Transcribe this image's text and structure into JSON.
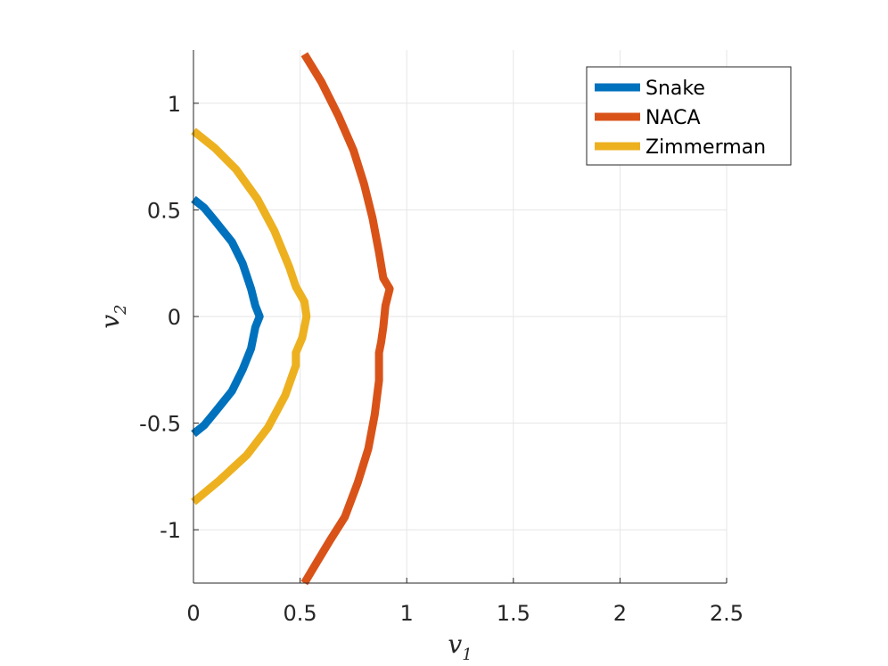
{
  "chart_data": {
    "type": "line",
    "title": "",
    "xlabel": {
      "base": "v",
      "sub": "1"
    },
    "ylabel": {
      "base": "v",
      "sub": "2"
    },
    "xlim": [
      0,
      2.5
    ],
    "ylim": [
      -1.25,
      1.25
    ],
    "xticks": [
      0,
      0.5,
      1,
      1.5,
      2,
      2.5
    ],
    "xtick_labels": [
      "0",
      "0.5",
      "1",
      "1.5",
      "2",
      "2.5"
    ],
    "yticks": [
      -1,
      -0.5,
      0,
      0.5,
      1
    ],
    "ytick_labels": [
      "-1",
      "-0.5",
      "0",
      "0.5",
      "1"
    ],
    "grid": true,
    "legend_position": "top-right",
    "series": [
      {
        "name": "Snake",
        "color": "#0072BD",
        "x": [
          0.0,
          0.05,
          0.1,
          0.18,
          0.23,
          0.27,
          0.29,
          0.31,
          0.29,
          0.27,
          0.23,
          0.18,
          0.1,
          0.05,
          0.0
        ],
        "y": [
          0.55,
          0.51,
          0.45,
          0.35,
          0.25,
          0.13,
          0.05,
          0.0,
          -0.05,
          -0.15,
          -0.25,
          -0.35,
          -0.45,
          -0.51,
          -0.55
        ]
      },
      {
        "name": "NACA",
        "color": "#D95319",
        "x": [
          0.52,
          0.6,
          0.68,
          0.75,
          0.8,
          0.84,
          0.87,
          0.89,
          0.92,
          0.9,
          0.89,
          0.88,
          0.87,
          0.87,
          0.85,
          0.82,
          0.77,
          0.71,
          0.64,
          0.58,
          0.52
        ],
        "y": [
          1.23,
          1.1,
          0.94,
          0.78,
          0.62,
          0.46,
          0.3,
          0.18,
          0.13,
          0.05,
          -0.05,
          -0.12,
          -0.17,
          -0.3,
          -0.46,
          -0.62,
          -0.78,
          -0.94,
          -1.05,
          -1.15,
          -1.25
        ]
      },
      {
        "name": "Zimmerman",
        "color": "#EDB120",
        "x": [
          0.0,
          0.1,
          0.2,
          0.3,
          0.38,
          0.45,
          0.48,
          0.52,
          0.53,
          0.51,
          0.48,
          0.48,
          0.43,
          0.35,
          0.25,
          0.12,
          0.0
        ],
        "y": [
          0.87,
          0.79,
          0.69,
          0.55,
          0.4,
          0.23,
          0.14,
          0.07,
          0.0,
          -0.1,
          -0.17,
          -0.23,
          -0.37,
          -0.52,
          -0.65,
          -0.77,
          -0.87
        ]
      }
    ]
  }
}
